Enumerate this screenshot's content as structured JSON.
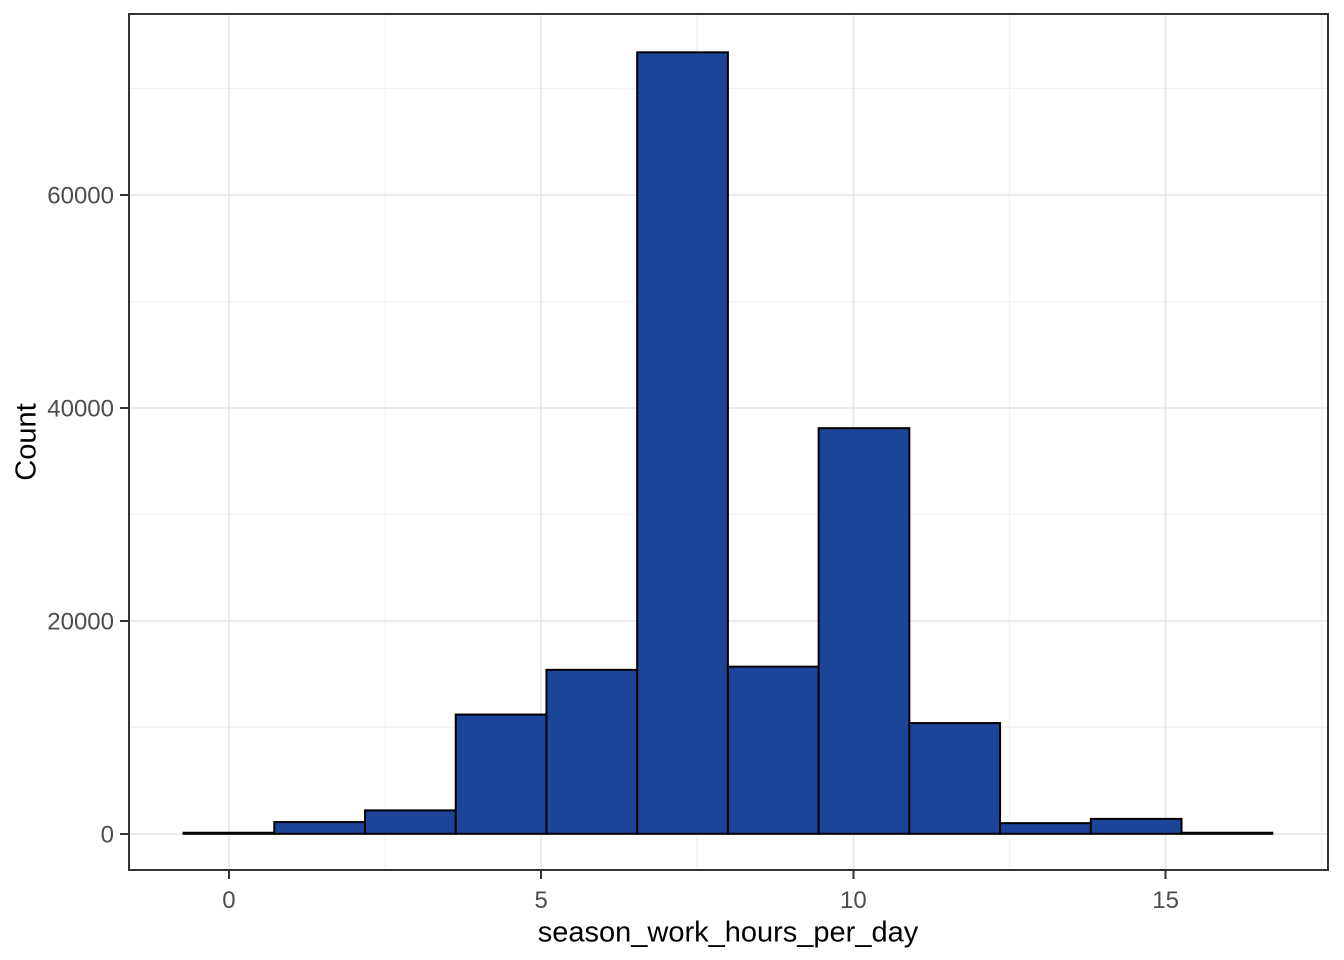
{
  "figure": {
    "background": "#ffffff"
  },
  "chart_data": {
    "type": "bar",
    "subtype": "histogram",
    "title": "",
    "xlabel": "season_work_hours_per_day",
    "ylabel": "Count",
    "bins": {
      "start": -0.7264,
      "width": 1.4528,
      "count": 12
    },
    "bin_edges": [
      -0.73,
      0.73,
      2.18,
      3.63,
      5.08,
      6.54,
      7.99,
      9.44,
      10.9,
      12.35,
      13.8,
      15.25,
      16.71
    ],
    "counts": [
      100,
      1100,
      2200,
      11200,
      15400,
      73400,
      15700,
      38100,
      10400,
      1000,
      1400,
      100
    ],
    "x_ticks": {
      "values": [
        0,
        5,
        10,
        15
      ],
      "labels": [
        "0",
        "5",
        "10",
        "15"
      ]
    },
    "y_ticks": {
      "values": [
        0,
        20000,
        40000,
        60000
      ],
      "labels": [
        "0",
        "20000",
        "40000",
        "60000"
      ]
    },
    "x_minor_ticks": [
      2.5,
      7.5,
      12.5,
      17.5
    ],
    "y_minor_ticks": [
      10000,
      30000,
      50000,
      70000
    ],
    "xlim": [
      -1.6,
      17.6
    ],
    "ylim": [
      -3400,
      77000
    ],
    "grid": "major-and-minor",
    "legend": "none",
    "colors": {
      "bar_fill": "#1c4499",
      "bar_stroke": "#000000",
      "grid_major": "#ebebeb",
      "grid_minor": "#f1f1f1",
      "panel_border": "#333333",
      "tick_mark": "#333333",
      "tick_label": "#4d4d4d",
      "axis_title": "#000000",
      "panel_bg": "#ffffff"
    }
  }
}
